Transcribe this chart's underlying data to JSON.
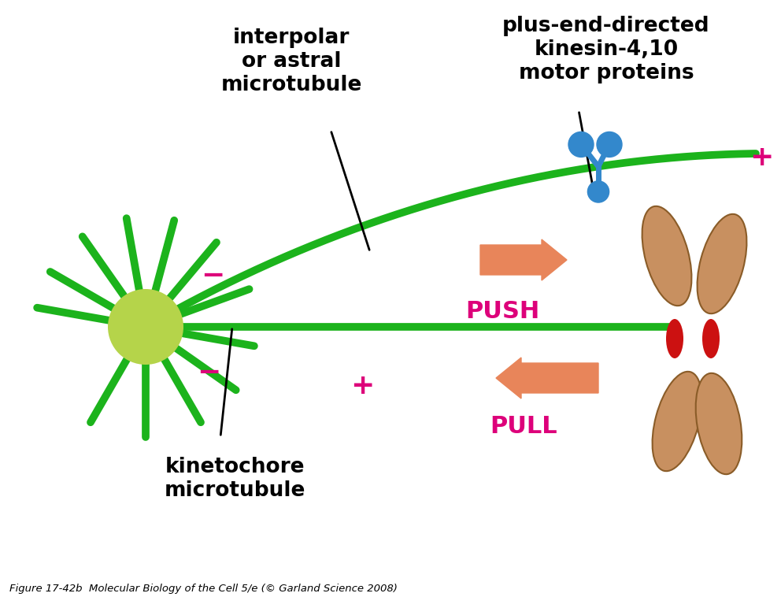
{
  "bg_color": "#ffffff",
  "green_color": "#1cb31c",
  "green_light": "#b5d44a",
  "black_color": "#000000",
  "magenta_color": "#dd007a",
  "arrow_color": "#e8855a",
  "blue_color": "#3388cc",
  "red_color": "#cc1111",
  "brown_light": "#c89060",
  "brown_mid": "#b07840",
  "brown_dark": "#8a5c28",
  "caption": "Figure 17-42b  Molecular Biology of the Cell 5/e (© Garland Science 2008)",
  "label_interpolar": "interpolar\nor astral\nmicrotubule",
  "label_kinetochore": "kinetochore\nmicrotubule",
  "label_kinesin": "plus-end-directed\nkinesin-4,10\nmotor proteins",
  "label_push": "PUSH",
  "label_pull": "PULL",
  "minus": "−",
  "plus": "+"
}
